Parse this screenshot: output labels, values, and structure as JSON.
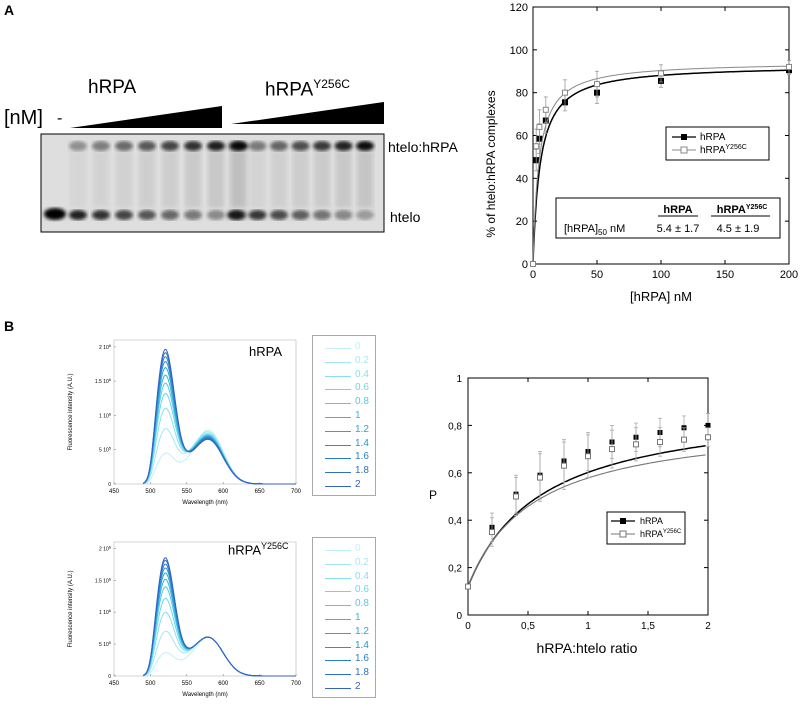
{
  "panel_a_letter": "A",
  "panel_b_letter": "B",
  "gel": {
    "label_wt": "hRPA",
    "label_mut": "hRPA",
    "label_mut_sup": "Y256C",
    "conc_label": "[nM]",
    "minus_sign": "-",
    "complex_label": "htelo:hRPA",
    "free_label": "htelo"
  },
  "chart_data": [
    {
      "type": "line",
      "xlabel": "[hRPA] nM",
      "ylabel": "% of htelo:hRPA complexes",
      "xlim": [
        0,
        200
      ],
      "ylim": [
        0,
        120
      ],
      "xticks": [
        0,
        50,
        100,
        150,
        200
      ],
      "yticks": [
        0,
        20,
        40,
        60,
        80,
        100,
        120
      ],
      "legend_position": "center-right",
      "series": [
        {
          "name": "hRPA",
          "marker": "filled-square",
          "color": "#000000",
          "x": [
            0,
            2.5,
            5,
            10,
            25,
            50,
            100,
            200
          ],
          "y": [
            0,
            48.5,
            58.5,
            67,
            75.5,
            80,
            85.5,
            90.5
          ],
          "err": [
            0,
            5,
            7,
            6,
            4,
            5,
            3,
            2
          ]
        },
        {
          "name": "hRPA",
          "name_sup": "Y256C",
          "marker": "open-square",
          "color": "#888888",
          "x": [
            0,
            2.5,
            5,
            10,
            25,
            50,
            100,
            200
          ],
          "y": [
            0,
            55,
            64,
            72,
            80,
            84,
            89,
            92
          ],
          "err": [
            0,
            8,
            8,
            6,
            6,
            6,
            4,
            3
          ]
        }
      ],
      "table": {
        "row_label": "[hRPA]",
        "row_label_sub": "50",
        "row_unit": "nM",
        "col1_header": "hRPA",
        "col2_header": "hRPA",
        "col2_header_sup": "Y256C",
        "col1_value": "5.4 ± 1.7",
        "col2_value": "4.5 ± 1.9"
      }
    },
    {
      "type": "line",
      "title": "hRPA",
      "xlabel": "Wavelength (nm)",
      "ylabel": "Fluorescence intensity (A.U.)",
      "xlim": [
        450,
        700
      ],
      "xticks": [
        450,
        500,
        550,
        600,
        650,
        700
      ],
      "ytick_labels": [
        "0",
        "5 10",
        "1 10",
        "1.5 10",
        "2 10"
      ],
      "ytick_sup": "6",
      "ytick_sup_first": "5",
      "legend": [
        "0",
        "0.2",
        "0.4",
        "0.6",
        "0.8",
        "1",
        "1.2",
        "1.4",
        "1.6",
        "1.8",
        "2"
      ],
      "legend_position": "right",
      "series_ratio": [
        0,
        0.2,
        0.4,
        0.6,
        0.8,
        1,
        1.2,
        1.4,
        1.6,
        1.8,
        2
      ],
      "peak1_nm": 520,
      "peak2_nm": 580,
      "peak1_values": [
        0.43,
        0.78,
        1.08,
        1.3,
        1.45,
        1.57,
        1.68,
        1.77,
        1.84,
        1.9,
        1.95
      ],
      "peak2_values": [
        0.78,
        0.75,
        0.73,
        0.71,
        0.7,
        0.69,
        0.68,
        0.67,
        0.66,
        0.65,
        0.64
      ]
    },
    {
      "type": "line",
      "title": "hRPA",
      "title_sup": "Y256C",
      "xlabel": "Wavelength (nm)",
      "ylabel": "Fluorescence intensity (A.U.)",
      "xlim": [
        450,
        700
      ],
      "xticks": [
        450,
        500,
        550,
        600,
        650,
        700
      ],
      "ytick_labels": [
        "0",
        "5 10",
        "1 10",
        "1.5 10",
        "2 10"
      ],
      "ytick_sup": "6",
      "ytick_sup_first": "5",
      "legend": [
        "0",
        "0.2",
        "0.4",
        "0.6",
        "0.8",
        "1",
        "1.2",
        "1.4",
        "1.6",
        "1.8",
        "2"
      ],
      "legend_position": "right",
      "series_ratio": [
        0,
        0.2,
        0.4,
        0.6,
        0.8,
        1,
        1.2,
        1.4,
        1.6,
        1.8,
        2
      ],
      "peak1_nm": 520,
      "peak2_nm": 580,
      "peak1_values": [
        0.35,
        0.68,
        0.98,
        1.2,
        1.38,
        1.5,
        1.6,
        1.68,
        1.74,
        1.8,
        1.84
      ],
      "peak2_values": [
        0.6,
        0.6,
        0.6,
        0.6,
        0.6,
        0.6,
        0.6,
        0.6,
        0.6,
        0.6,
        0.6
      ]
    },
    {
      "type": "line",
      "xlabel": "hRPA:htelo ratio",
      "ylabel": "P",
      "xlim": [
        0,
        2
      ],
      "ylim": [
        0,
        1
      ],
      "xticks": [
        0,
        0.5,
        1,
        1.5,
        2
      ],
      "xtick_labels": [
        "0",
        "0,5",
        "1",
        "1,5",
        "2"
      ],
      "yticks": [
        0,
        0.2,
        0.4,
        0.6,
        0.8,
        1
      ],
      "ytick_labels": [
        "0",
        "0,2",
        "0,4",
        "0,6",
        "0,8",
        "1"
      ],
      "legend_position": "center-right",
      "series": [
        {
          "name": "hRPA",
          "marker": "filled-square",
          "color": "#000000",
          "x": [
            0,
            0.2,
            0.4,
            0.6,
            0.8,
            1,
            1.2,
            1.4,
            1.6,
            1.8,
            2
          ],
          "y": [
            0.12,
            0.37,
            0.51,
            0.59,
            0.65,
            0.69,
            0.73,
            0.75,
            0.77,
            0.79,
            0.8
          ],
          "err": [
            0,
            0.06,
            0.08,
            0.1,
            0.09,
            0.08,
            0.07,
            0.06,
            0.06,
            0.05,
            0.05
          ]
        },
        {
          "name": "hRPA",
          "name_sup": "Y256C",
          "marker": "open-square",
          "color": "#777777",
          "x": [
            0,
            0.2,
            0.4,
            0.6,
            0.8,
            1,
            1.2,
            1.4,
            1.6,
            1.8,
            2
          ],
          "y": [
            0.12,
            0.35,
            0.5,
            0.58,
            0.63,
            0.67,
            0.7,
            0.72,
            0.73,
            0.74,
            0.75
          ],
          "err": [
            0,
            0.06,
            0.08,
            0.1,
            0.1,
            0.09,
            0.08,
            0.07,
            0.06,
            0.05,
            0.04
          ]
        }
      ]
    }
  ],
  "colors": {
    "spectra": [
      "#bff0f7",
      "#a2e8f2",
      "#87e0ee",
      "#6bd6e8",
      "#55c8e3",
      "#39b5d9",
      "#2aa6d4",
      "#2795cc",
      "#2a80c8",
      "#2f6fc5",
      "#3462c7"
    ]
  }
}
